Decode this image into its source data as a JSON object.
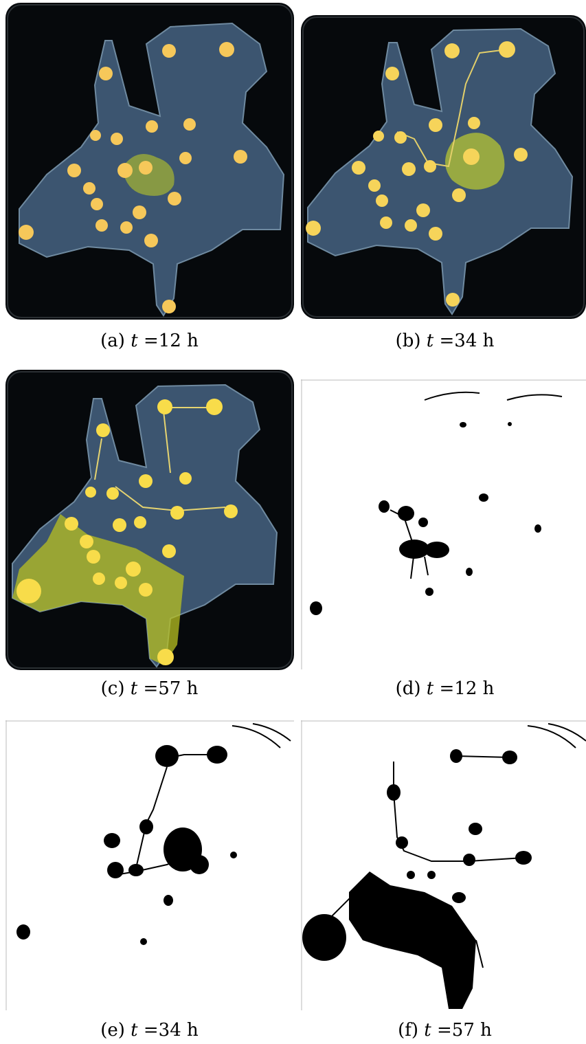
{
  "figure": {
    "panels": [
      {
        "id": "a",
        "label": "(a)",
        "var": "t",
        "eq": "=",
        "value": "12",
        "unit": "h",
        "kind": "photo"
      },
      {
        "id": "b",
        "label": "(b)",
        "var": "t",
        "eq": "=",
        "value": "34",
        "unit": "h",
        "kind": "photo"
      },
      {
        "id": "c",
        "label": "(c)",
        "var": "t",
        "eq": "=",
        "value": "57",
        "unit": "h",
        "kind": "photo"
      },
      {
        "id": "d",
        "label": "(d)",
        "var": "t",
        "eq": "=",
        "value": "12",
        "unit": "h",
        "kind": "binary"
      },
      {
        "id": "e",
        "label": "(e)",
        "var": "t",
        "eq": "=",
        "value": "34",
        "unit": "h",
        "kind": "binary"
      },
      {
        "id": "f",
        "label": "(f)",
        "var": "t",
        "eq": "=",
        "value": "57",
        "unit": "h",
        "kind": "binary"
      }
    ]
  }
}
